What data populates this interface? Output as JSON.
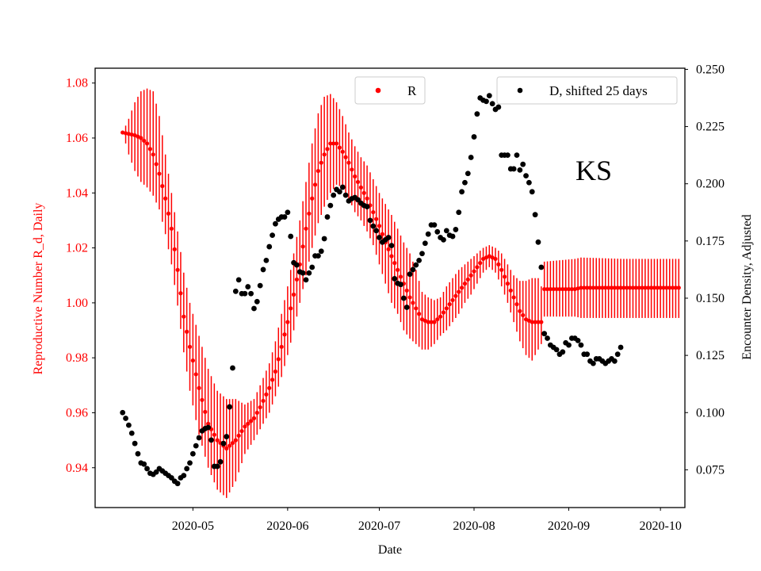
{
  "chart_data": {
    "type": "scatter",
    "state_label": "KS",
    "xlabel": "Date",
    "ylabel_left": "Reproductive Number R_d, Daily",
    "ylabel_right": "Encounter Density, Adjusted",
    "x_ticks": [
      "2020-05",
      "2020-06",
      "2020-07",
      "2020-08",
      "2020-09",
      "2020-10"
    ],
    "x_tick_days": [
      31,
      62,
      92,
      123,
      154,
      184
    ],
    "x_range_days": [
      -1,
      192
    ],
    "y_left_ticks": [
      "0.94",
      "0.96",
      "0.98",
      "1.00",
      "1.02",
      "1.04",
      "1.06",
      "1.08"
    ],
    "y_left_range": [
      0.9255,
      1.0854
    ],
    "y_right_ticks": [
      "0.075",
      "0.100",
      "0.125",
      "0.150",
      "0.175",
      "0.200",
      "0.225",
      "0.250"
    ],
    "y_right_range": [
      0.0585,
      0.2505
    ],
    "legend": {
      "r_label": "R",
      "d_label": "D, shifted 25 days",
      "r_placement": "top-center",
      "d_placement": "top-right"
    },
    "colors": {
      "r": "#ff0000",
      "d": "#000000",
      "left_axis": "#ff0000"
    },
    "r_day_start": 8,
    "r_day_end": 190,
    "r_knots": [
      [
        8,
        1.062,
        1.062,
        1.062
      ],
      [
        10,
        1.0615,
        1.054,
        1.067
      ],
      [
        12,
        1.061,
        1.048,
        1.073
      ],
      [
        14,
        1.06,
        1.044,
        1.077
      ],
      [
        16,
        1.058,
        1.042,
        1.078
      ],
      [
        18,
        1.054,
        1.039,
        1.077
      ],
      [
        20,
        1.047,
        1.034,
        1.068
      ],
      [
        22,
        1.038,
        1.025,
        1.054
      ],
      [
        24,
        1.027,
        1.014,
        1.04
      ],
      [
        26,
        1.012,
        0.999,
        1.026
      ],
      [
        28,
        0.995,
        0.982,
        1.011
      ],
      [
        30,
        0.984,
        0.968,
        1.0
      ],
      [
        33,
        0.969,
        0.952,
        0.988
      ],
      [
        36,
        0.956,
        0.94,
        0.976
      ],
      [
        39,
        0.95,
        0.932,
        0.968
      ],
      [
        42,
        0.947,
        0.929,
        0.965
      ],
      [
        45,
        0.95,
        0.935,
        0.965
      ],
      [
        48,
        0.955,
        0.945,
        0.963
      ],
      [
        51,
        0.958,
        0.95,
        0.965
      ],
      [
        53,
        0.962,
        0.954,
        0.97
      ],
      [
        56,
        0.969,
        0.96,
        0.978
      ],
      [
        58,
        0.975,
        0.966,
        0.986
      ],
      [
        60,
        0.984,
        0.973,
        0.996
      ],
      [
        62,
        0.993,
        0.981,
        1.006
      ],
      [
        64,
        1.003,
        0.99,
        1.018
      ],
      [
        66,
        1.014,
        1.0,
        1.03
      ],
      [
        68,
        1.027,
        1.01,
        1.044
      ],
      [
        70,
        1.038,
        1.02,
        1.058
      ],
      [
        72,
        1.048,
        1.029,
        1.069
      ],
      [
        74,
        1.054,
        1.035,
        1.075
      ],
      [
        76,
        1.058,
        1.04,
        1.076
      ],
      [
        78,
        1.058,
        1.043,
        1.073
      ],
      [
        80,
        1.055,
        1.042,
        1.068
      ],
      [
        82,
        1.051,
        1.038,
        1.062
      ],
      [
        84,
        1.046,
        1.033,
        1.057
      ],
      [
        86,
        1.042,
        1.03,
        1.053
      ],
      [
        88,
        1.038,
        1.026,
        1.05
      ],
      [
        90,
        1.033,
        1.021,
        1.045
      ],
      [
        92,
        1.028,
        1.014,
        1.04
      ],
      [
        94,
        1.022,
        1.007,
        1.036
      ],
      [
        96,
        1.017,
        1.0,
        1.032
      ],
      [
        98,
        1.012,
        0.996,
        1.027
      ],
      [
        100,
        1.007,
        0.99,
        1.022
      ],
      [
        102,
        1.002,
        0.987,
        1.018
      ],
      [
        104,
        0.998,
        0.985,
        1.012
      ],
      [
        106,
        0.994,
        0.983,
        1.004
      ],
      [
        108,
        0.993,
        0.983,
        1.002
      ],
      [
        110,
        0.993,
        0.985,
        1.001
      ],
      [
        112,
        0.995,
        0.988,
        1.002
      ],
      [
        114,
        0.998,
        0.99,
        1.006
      ],
      [
        116,
        1.001,
        0.993,
        1.009
      ],
      [
        118,
        1.004,
        0.996,
        1.012
      ],
      [
        120,
        1.007,
        1.0,
        1.014
      ],
      [
        122,
        1.01,
        1.003,
        1.016
      ],
      [
        124,
        1.013,
        1.007,
        1.018
      ],
      [
        126,
        1.016,
        1.011,
        1.02
      ],
      [
        128,
        1.017,
        1.013,
        1.021
      ],
      [
        130,
        1.016,
        1.011,
        1.02
      ],
      [
        132,
        1.012,
        1.006,
        1.018
      ],
      [
        134,
        1.007,
        1.0,
        1.014
      ],
      [
        136,
        1.002,
        0.993,
        1.01
      ],
      [
        138,
        0.997,
        0.986,
        1.008
      ],
      [
        140,
        0.994,
        0.981,
        1.008
      ],
      [
        142,
        0.993,
        0.979,
        1.009
      ],
      [
        144,
        0.993,
        0.983,
        1.009
      ],
      [
        145,
        0.993,
        0.985,
        1.006
      ],
      [
        146,
        1.005,
        0.995,
        1.015
      ],
      [
        156,
        1.005,
        0.995,
        1.016
      ],
      [
        158,
        1.0055,
        0.9945,
        1.0165
      ],
      [
        172,
        1.0055,
        0.9945,
        1.016
      ],
      [
        190,
        1.0055,
        0.9945,
        1.016
      ]
    ],
    "d_points": [
      [
        8,
        0.1
      ],
      [
        9,
        0.0975
      ],
      [
        10,
        0.0945
      ],
      [
        11,
        0.091
      ],
      [
        12,
        0.0865
      ],
      [
        13,
        0.082
      ],
      [
        14,
        0.078
      ],
      [
        15,
        0.0775
      ],
      [
        16,
        0.0755
      ],
      [
        17,
        0.0735
      ],
      [
        18,
        0.073
      ],
      [
        19,
        0.074
      ],
      [
        20,
        0.0755
      ],
      [
        21,
        0.0745
      ],
      [
        22,
        0.0735
      ],
      [
        23,
        0.0725
      ],
      [
        24,
        0.0715
      ],
      [
        25,
        0.07
      ],
      [
        26,
        0.069
      ],
      [
        27,
        0.0715
      ],
      [
        28,
        0.0725
      ],
      [
        29,
        0.0755
      ],
      [
        30,
        0.078
      ],
      [
        31,
        0.082
      ],
      [
        32,
        0.0855
      ],
      [
        33,
        0.089
      ],
      [
        34,
        0.092
      ],
      [
        35,
        0.093
      ],
      [
        36,
        0.0935
      ],
      [
        37,
        0.088
      ],
      [
        38,
        0.0765
      ],
      [
        39,
        0.0765
      ],
      [
        40,
        0.0785
      ],
      [
        41,
        0.0865
      ],
      [
        42,
        0.0895
      ],
      [
        43,
        0.1025
      ],
      [
        44,
        0.1195
      ],
      [
        45,
        0.153
      ],
      [
        46,
        0.158
      ],
      [
        47,
        0.152
      ],
      [
        48,
        0.152
      ],
      [
        49,
        0.155
      ],
      [
        50,
        0.152
      ],
      [
        51,
        0.1455
      ],
      [
        52,
        0.1485
      ],
      [
        53,
        0.1555
      ],
      [
        54,
        0.1625
      ],
      [
        55,
        0.1665
      ],
      [
        56,
        0.1725
      ],
      [
        57,
        0.1775
      ],
      [
        58,
        0.1825
      ],
      [
        59,
        0.1845
      ],
      [
        60,
        0.1855
      ],
      [
        61,
        0.1855
      ],
      [
        62,
        0.1875
      ],
      [
        63,
        0.177
      ],
      [
        64,
        0.1655
      ],
      [
        65,
        0.1645
      ],
      [
        66,
        0.1615
      ],
      [
        67,
        0.161
      ],
      [
        68,
        0.158
      ],
      [
        69,
        0.161
      ],
      [
        70,
        0.1635
      ],
      [
        71,
        0.1685
      ],
      [
        72,
        0.1685
      ],
      [
        73,
        0.1705
      ],
      [
        74,
        0.176
      ],
      [
        75,
        0.1855
      ],
      [
        76,
        0.1905
      ],
      [
        77,
        0.195
      ],
      [
        78,
        0.1975
      ],
      [
        79,
        0.1965
      ],
      [
        80,
        0.1985
      ],
      [
        81,
        0.195
      ],
      [
        82,
        0.1925
      ],
      [
        83,
        0.1935
      ],
      [
        84,
        0.194
      ],
      [
        85,
        0.193
      ],
      [
        86,
        0.1915
      ],
      [
        87,
        0.1905
      ],
      [
        88,
        0.19
      ],
      [
        89,
        0.184
      ],
      [
        90,
        0.1815
      ],
      [
        91,
        0.1795
      ],
      [
        92,
        0.1765
      ],
      [
        93,
        0.1745
      ],
      [
        94,
        0.1755
      ],
      [
        95,
        0.1765
      ],
      [
        96,
        0.173
      ],
      [
        97,
        0.1585
      ],
      [
        98,
        0.1565
      ],
      [
        99,
        0.156
      ],
      [
        100,
        0.15
      ],
      [
        101,
        0.146
      ],
      [
        102,
        0.1605
      ],
      [
        103,
        0.1625
      ],
      [
        104,
        0.1645
      ],
      [
        105,
        0.1665
      ],
      [
        106,
        0.1695
      ],
      [
        107,
        0.174
      ],
      [
        108,
        0.178
      ],
      [
        109,
        0.182
      ],
      [
        110,
        0.182
      ],
      [
        111,
        0.179
      ],
      [
        112,
        0.1765
      ],
      [
        113,
        0.1755
      ],
      [
        114,
        0.1795
      ],
      [
        115,
        0.1775
      ],
      [
        116,
        0.177
      ],
      [
        117,
        0.18
      ],
      [
        118,
        0.1875
      ],
      [
        119,
        0.1965
      ],
      [
        120,
        0.2005
      ],
      [
        121,
        0.2045
      ],
      [
        122,
        0.2115
      ],
      [
        123,
        0.2205
      ],
      [
        124,
        0.2305
      ],
      [
        125,
        0.2375
      ],
      [
        126,
        0.2365
      ],
      [
        127,
        0.236
      ],
      [
        128,
        0.2385
      ],
      [
        129,
        0.235
      ],
      [
        130,
        0.2325
      ],
      [
        131,
        0.2335
      ],
      [
        132,
        0.2125
      ],
      [
        133,
        0.2125
      ],
      [
        134,
        0.2125
      ],
      [
        135,
        0.2065
      ],
      [
        136,
        0.2065
      ],
      [
        137,
        0.2125
      ],
      [
        138,
        0.206
      ],
      [
        139,
        0.2085
      ],
      [
        140,
        0.2035
      ],
      [
        141,
        0.2005
      ],
      [
        142,
        0.1965
      ],
      [
        143,
        0.1865
      ],
      [
        144,
        0.1745
      ],
      [
        145,
        0.1635
      ],
      [
        146,
        0.1345
      ],
      [
        147,
        0.1325
      ],
      [
        148,
        0.1295
      ],
      [
        149,
        0.1285
      ],
      [
        150,
        0.1275
      ],
      [
        151,
        0.1255
      ],
      [
        152,
        0.1265
      ],
      [
        153,
        0.1305
      ],
      [
        154,
        0.1295
      ],
      [
        155,
        0.1325
      ],
      [
        156,
        0.1325
      ],
      [
        157,
        0.1315
      ],
      [
        158,
        0.1295
      ],
      [
        159,
        0.1255
      ],
      [
        160,
        0.1255
      ],
      [
        161,
        0.1225
      ],
      [
        162,
        0.1215
      ],
      [
        163,
        0.1235
      ],
      [
        164,
        0.1235
      ],
      [
        165,
        0.1225
      ],
      [
        166,
        0.1215
      ],
      [
        167,
        0.1225
      ],
      [
        168,
        0.1235
      ],
      [
        169,
        0.1225
      ],
      [
        170,
        0.1255
      ],
      [
        171,
        0.1285
      ]
    ]
  }
}
